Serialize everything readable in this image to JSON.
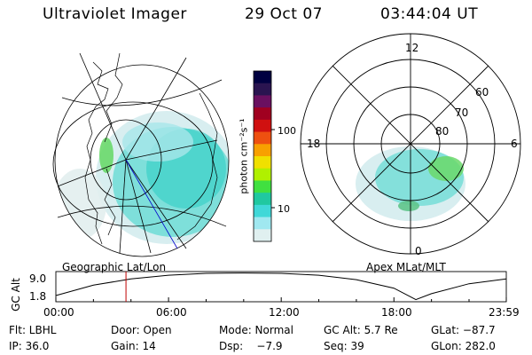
{
  "header": {
    "instrument": "Ultraviolet Imager",
    "date": "29 Oct 07",
    "time": "03:44:04 UT"
  },
  "colorbar": {
    "unit_label": "photon cm⁻²s⁻¹",
    "ticks": [
      "100",
      "10"
    ],
    "colors": [
      "#000040",
      "#2a1450",
      "#6a1060",
      "#a00020",
      "#d01010",
      "#ee5010",
      "#f8a000",
      "#f0e000",
      "#b0f000",
      "#40e040",
      "#20c8a0",
      "#40d8d8",
      "#a0e8f0",
      "#e0f0f0"
    ]
  },
  "left_panel": {
    "label": "Geographic Lat/Lon"
  },
  "right_panel": {
    "label": "Apex  MLat/MLT",
    "clock_labels": {
      "top": "12",
      "left": "18",
      "right": "6",
      "bottom": "0"
    },
    "lat_labels": [
      "60",
      "70",
      "80"
    ]
  },
  "timeline": {
    "axis_title": "GC Alt",
    "y_ticks": [
      "9.0",
      "1.8"
    ],
    "x_ticks": [
      "00:00",
      "06:00",
      "12:00",
      "18:00",
      "23:59"
    ],
    "chart_data": {
      "type": "line",
      "title": "",
      "xlabel": "",
      "ylabel": "GC Alt",
      "ylim": [
        1.8,
        9.0
      ],
      "x": [
        "00:00",
        "02:00",
        "04:00",
        "06:00",
        "08:00",
        "10:00",
        "12:00",
        "14:00",
        "16:00",
        "18:00",
        "19:10",
        "20:00",
        "22:00",
        "23:59"
      ],
      "series": [
        {
          "values": [
            3.0,
            5.8,
            7.5,
            8.5,
            9.0,
            9.1,
            9.0,
            8.5,
            7.3,
            5.0,
            1.9,
            3.5,
            6.2,
            7.5
          ]
        }
      ],
      "current_time": "03:44",
      "marker_color": "#c00000"
    }
  },
  "status": {
    "filter": "Flt: LBHL",
    "door": "Door: Open",
    "mode": "Mode: Normal",
    "gc_alt": "GC Alt: 5.7 Re",
    "glat": "GLat: −87.7",
    "ip": "IP: 36.0",
    "gain": "Gain: 14",
    "dsp": "Dsp:    −7.9",
    "seq": "Seq: 39",
    "glon": "GLon: 282.0"
  }
}
